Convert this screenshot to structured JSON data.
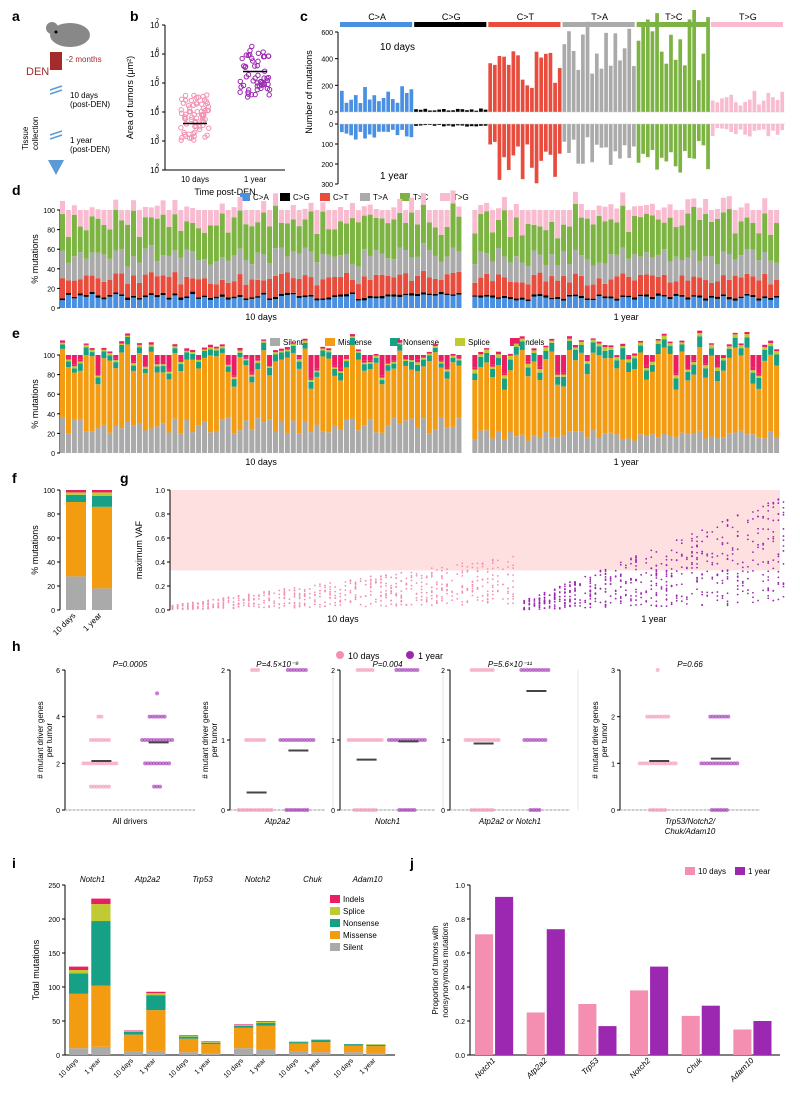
{
  "colors": {
    "CA": "#4a90e2",
    "CG": "#000000",
    "CT": "#e74c3c",
    "TA": "#aaaaaa",
    "TC": "#7cb342",
    "TG": "#f8bbd0",
    "silent": "#aaaaaa",
    "missense": "#f39c12",
    "nonsense": "#16a085",
    "splice": "#c0ca33",
    "indels": "#e91e63",
    "d10": "#f48fb1",
    "yr1": "#9c27b0",
    "bg": "#ffffff",
    "grid": "#e0e0e0",
    "axis": "#000000",
    "den": "#a52a2a",
    "arrow": "#5b9bd5",
    "shade": "#ffe0e0"
  },
  "mut_types": [
    "C>A",
    "C>G",
    "C>T",
    "T>A",
    "T>C",
    "T>G"
  ],
  "impact_types": [
    "Silent",
    "Missense",
    "Nonsense",
    "Splice",
    "Indels"
  ],
  "panelA": {
    "den_label": "DEN",
    "den_time": "-2 months",
    "tissue": "Tissue\ncollection",
    "t1": "10 days\n(post-DEN)",
    "t2": "1 year\n(post-DEN)"
  },
  "panelB": {
    "ylabel": "Area of tumors (μm²)",
    "xlabel": "Time post-DEN",
    "xticks": [
      "10 days",
      "1 year"
    ],
    "ylim": [
      100,
      10000000
    ],
    "ytick_exp": [
      2,
      3,
      4,
      5,
      6,
      7
    ],
    "median10": 4000,
    "median1yr": 250000,
    "n10": 70,
    "n1yr": 55
  },
  "panelC": {
    "ylabel": "Number of mutations",
    "ylim_top": [
      0,
      600
    ],
    "ylim_bot": [
      0,
      300
    ],
    "lbl_top": "10 days",
    "lbl_bot": "1 year",
    "bars_per_type": 16
  },
  "panelD": {
    "ylabel": "% mutations",
    "ylim": [
      0,
      100
    ],
    "yticks": [
      0,
      20,
      40,
      60,
      80,
      100
    ],
    "x10": "10 days",
    "x1": "1 year",
    "n10": 68,
    "n1yr": 52,
    "avg10": {
      "CA": 11,
      "CG": 2,
      "CT": 17,
      "TA": 22,
      "TC": 36,
      "TG": 12
    },
    "avg1yr": {
      "CA": 10,
      "CG": 2,
      "CT": 18,
      "TA": 21,
      "TC": 37,
      "TG": 12
    }
  },
  "panelE": {
    "ylabel": "% mutations",
    "ylim": [
      0,
      100
    ],
    "yticks": [
      0,
      20,
      40,
      60,
      80,
      100
    ],
    "x10": "10 days",
    "x1": "1 year",
    "n10": 68,
    "n1yr": 52,
    "avg10": {
      "silent": 28,
      "missense": 62,
      "nonsense": 6,
      "splice": 2,
      "indels": 2
    },
    "avg1yr": {
      "silent": 18,
      "missense": 68,
      "nonsense": 9,
      "splice": 3,
      "indels": 2
    }
  },
  "panelF": {
    "ylabel": "% mutations",
    "ylim": [
      0,
      100
    ],
    "yticks": [
      0,
      20,
      40,
      60,
      80,
      100
    ],
    "xticks": [
      "10 days",
      "1 year"
    ],
    "d10": {
      "silent": 28,
      "missense": 62,
      "nonsense": 6,
      "splice": 2,
      "indels": 2
    },
    "yr1": {
      "silent": 18,
      "missense": 68,
      "nonsense": 9,
      "splice": 3,
      "indels": 2
    }
  },
  "panelG": {
    "ylabel": "maximum VAF",
    "ylim": [
      0,
      1.0
    ],
    "yticks": [
      0.0,
      0.2,
      0.4,
      0.6,
      0.8,
      1.0
    ],
    "x10": "10 days",
    "x1": "1 year",
    "n10": 68,
    "n1yr": 52,
    "shade_from": 0.33
  },
  "panelH": {
    "ylabel": "# mutant driver genes\nper tumor",
    "legend": [
      "10 days",
      "1 year"
    ],
    "groups": [
      {
        "label": "All drivers",
        "p": "P=0.0005",
        "ylim": [
          0,
          6
        ],
        "mean10": 2.1,
        "mean1": 2.9,
        "yticks": [
          0,
          2,
          4,
          6
        ]
      },
      {
        "label": "Atp2a2",
        "p": "P=4.5×10⁻⁹",
        "ylim": [
          0,
          2
        ],
        "mean10": 0.25,
        "mean1": 0.85,
        "yticks": [
          0,
          1,
          2
        ]
      },
      {
        "label": "Notch1",
        "p": "P=0.004",
        "ylim": [
          0,
          2
        ],
        "mean10": 0.72,
        "mean1": 0.98,
        "yticks": [
          0,
          1,
          2
        ]
      },
      {
        "label": "Atp2a2 or Notch1",
        "p": "P=5.6×10⁻¹¹",
        "ylim": [
          0,
          2
        ],
        "mean10": 0.95,
        "mean1": 1.7,
        "yticks": [
          0,
          1,
          2
        ]
      },
      {
        "label": "Trp53/Notch2/\nChuk/Adam10",
        "p": "P=0.66",
        "ylim": [
          0,
          3
        ],
        "mean10": 1.05,
        "mean1": 1.1,
        "yticks": [
          0,
          1,
          2,
          3
        ]
      }
    ]
  },
  "panelI": {
    "ylabel": "Total mutations",
    "ylim": [
      0,
      250
    ],
    "yticks": [
      0,
      50,
      100,
      150,
      200,
      250
    ],
    "genes": [
      "Notch1",
      "Atp2a2",
      "Trp53",
      "Notch2",
      "Chuk",
      "Adam10"
    ],
    "xticks": [
      "10 days",
      "1 year"
    ],
    "data": {
      "Notch1": {
        "d10": {
          "silent": 10,
          "missense": 80,
          "nonsense": 30,
          "splice": 5,
          "indels": 5
        },
        "yr1": {
          "silent": 12,
          "missense": 90,
          "nonsense": 95,
          "splice": 25,
          "indels": 8
        }
      },
      "Atp2a2": {
        "d10": {
          "silent": 5,
          "missense": 25,
          "nonsense": 4,
          "splice": 1,
          "indels": 1
        },
        "yr1": {
          "silent": 6,
          "missense": 60,
          "nonsense": 22,
          "splice": 3,
          "indels": 2
        }
      },
      "Trp53": {
        "d10": {
          "silent": 4,
          "missense": 20,
          "nonsense": 3,
          "splice": 1,
          "indels": 1
        },
        "yr1": {
          "silent": 2,
          "missense": 14,
          "nonsense": 2,
          "splice": 1,
          "indels": 1
        }
      },
      "Notch2": {
        "d10": {
          "silent": 10,
          "missense": 30,
          "nonsense": 3,
          "splice": 1,
          "indels": 1
        },
        "yr1": {
          "silent": 8,
          "missense": 35,
          "nonsense": 4,
          "splice": 2,
          "indels": 1
        }
      },
      "Chuk": {
        "d10": {
          "silent": 5,
          "missense": 12,
          "nonsense": 2,
          "splice": 1,
          "indels": 0
        },
        "yr1": {
          "silent": 4,
          "missense": 15,
          "nonsense": 3,
          "splice": 1,
          "indels": 0
        }
      },
      "Adam10": {
        "d10": {
          "silent": 4,
          "missense": 10,
          "nonsense": 2,
          "splice": 0,
          "indels": 0
        },
        "yr1": {
          "silent": 3,
          "missense": 10,
          "nonsense": 2,
          "splice": 1,
          "indels": 0
        }
      }
    }
  },
  "panelJ": {
    "ylabel": "Proportion of tumors with\nnonsynonymous mutations",
    "ylim": [
      0,
      1.0
    ],
    "yticks": [
      0.0,
      0.2,
      0.4,
      0.6,
      0.8,
      1.0
    ],
    "legend": [
      "10 days",
      "1 year"
    ],
    "genes": [
      "Notch1",
      "Atp2a2",
      "Trp53",
      "Notch2",
      "Chuk",
      "Adam10"
    ],
    "values": {
      "Notch1": [
        0.71,
        0.93
      ],
      "Atp2a2": [
        0.25,
        0.74
      ],
      "Trp53": [
        0.3,
        0.17
      ],
      "Notch2": [
        0.38,
        0.52
      ],
      "Chuk": [
        0.23,
        0.29
      ],
      "Adam10": [
        0.15,
        0.2
      ]
    }
  }
}
